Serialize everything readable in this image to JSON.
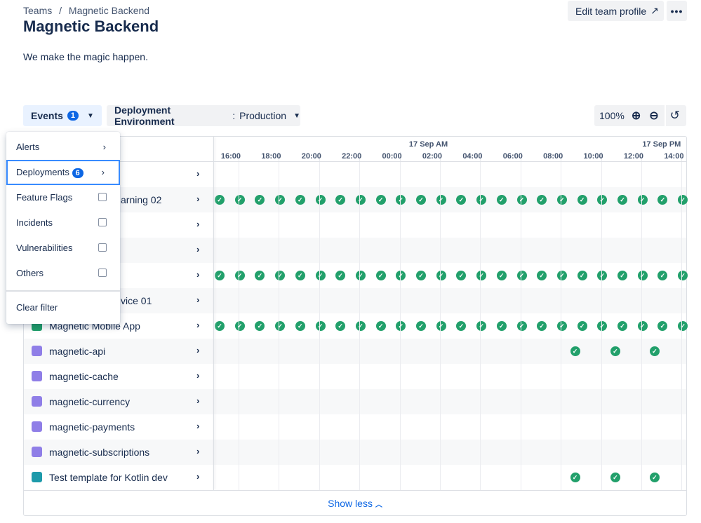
{
  "breadcrumb": {
    "items": [
      "Teams",
      "Magnetic Backend"
    ],
    "separator": "/"
  },
  "header": {
    "title": "Magnetic Backend",
    "description": "We make the magic happen.",
    "edit_label": "Edit team profile",
    "more_label": "•••"
  },
  "filters": {
    "events_label": "Events",
    "events_count": "1",
    "env_label": "Deployment Environment",
    "env_value": "Production"
  },
  "zoom": {
    "level": "100%"
  },
  "timeline": {
    "days": [
      {
        "label": "17 Sep AM",
        "hour": 2
      },
      {
        "label": "17 Sep PM",
        "hour": 14
      }
    ],
    "hours": [
      "16:00",
      "18:00",
      "20:00",
      "22:00",
      "00:00",
      "02:00",
      "04:00",
      "06:00",
      "08:00",
      "10:00",
      "12:00",
      "14:00"
    ]
  },
  "rows": [
    {
      "name": "",
      "icon": "none",
      "deploy": "none"
    },
    {
      "name": "arning 02",
      "icon": "none",
      "deploy": "hourly"
    },
    {
      "name": "",
      "icon": "none",
      "deploy": "none"
    },
    {
      "name": "",
      "icon": "none",
      "deploy": "none"
    },
    {
      "name": "",
      "icon": "none",
      "deploy": "hourly"
    },
    {
      "name": "vice 01",
      "icon": "none",
      "deploy": "none"
    },
    {
      "name": "Magnetic Mobile App",
      "icon": "mobile",
      "deploy": "hourly"
    },
    {
      "name": "magnetic-api",
      "icon": "service",
      "deploy": "sparse"
    },
    {
      "name": "magnetic-cache",
      "icon": "service",
      "deploy": "none"
    },
    {
      "name": "magnetic-currency",
      "icon": "service",
      "deploy": "none"
    },
    {
      "name": "magnetic-payments",
      "icon": "service",
      "deploy": "none"
    },
    {
      "name": "magnetic-subscriptions",
      "icon": "service",
      "deploy": "none"
    },
    {
      "name": "Test template for Kotlin dev",
      "icon": "template",
      "deploy": "sparse"
    }
  ],
  "show_less": "Show less",
  "menu": {
    "items": [
      {
        "label": "Alerts",
        "type": "submenu"
      },
      {
        "label": "Deployments",
        "type": "submenu",
        "count": "6",
        "selected": true
      },
      {
        "label": "Feature Flags",
        "type": "checkbox"
      },
      {
        "label": "Incidents",
        "type": "checkbox"
      },
      {
        "label": "Vulnerabilities",
        "type": "checkbox"
      },
      {
        "label": "Others",
        "type": "checkbox"
      }
    ],
    "clear_label": "Clear filter"
  },
  "colors": {
    "accent": "#0c66e4",
    "success": "#22a06b",
    "service": "#8f7ee7"
  }
}
